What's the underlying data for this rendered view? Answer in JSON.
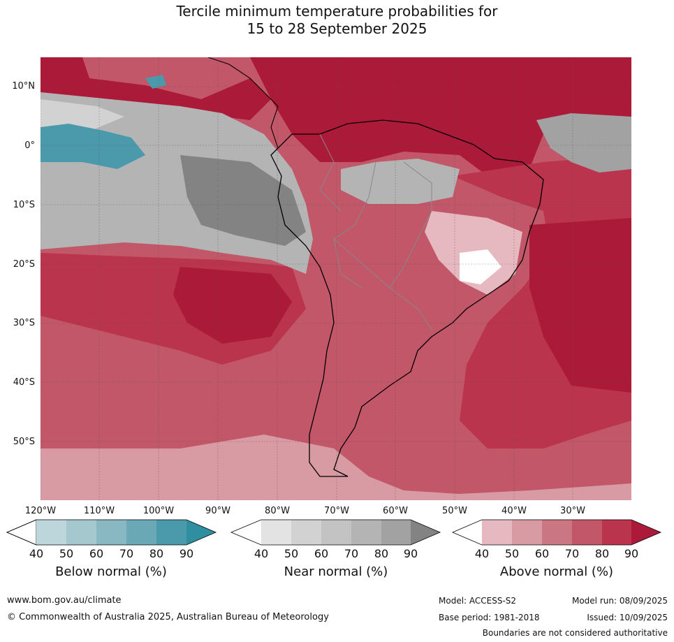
{
  "title": {
    "line1": "Tercile minimum temperature probabilities for",
    "line2": "15 to 28 September 2025"
  },
  "axes": {
    "lat_labels": [
      "10°N",
      "0°",
      "10°S",
      "20°S",
      "30°S",
      "40°S",
      "50°S"
    ],
    "lon_labels": [
      "120°W",
      "110°W",
      "100°W",
      "90°W",
      "80°W",
      "70°W",
      "60°W",
      "50°W",
      "40°W",
      "30°W"
    ]
  },
  "colorbars": [
    {
      "name": "Below normal (%)",
      "ticks": [
        "40",
        "50",
        "60",
        "70",
        "80",
        "90"
      ],
      "colors": [
        "#ffffff",
        "#bcd6dc",
        "#a5c8cf",
        "#8ab8c2",
        "#6aa8b5",
        "#4b9aab",
        "#2f8ea0"
      ]
    },
    {
      "name": "Near normal (%)",
      "ticks": [
        "40",
        "50",
        "60",
        "70",
        "80",
        "90"
      ],
      "colors": [
        "#ffffff",
        "#e3e3e3",
        "#d2d2d2",
        "#c3c3c3",
        "#b4b4b4",
        "#a2a2a2",
        "#838383"
      ]
    },
    {
      "name": "Above normal (%)",
      "ticks": [
        "40",
        "50",
        "60",
        "70",
        "80",
        "90"
      ],
      "colors": [
        "#ffffff",
        "#e6b9c0",
        "#d89aa3",
        "#cb7683",
        "#c25769",
        "#b9344c",
        "#ac1a39"
      ]
    }
  ],
  "footer": {
    "url": "www.bom.gov.au/climate",
    "copyright": "© Commonwealth of Australia 2025, Australian Bureau of Meteorology",
    "model": "Model: ACCESS-S2",
    "base_period": "Base period: 1981-2018",
    "model_run": "Model run: 08/09/2025",
    "issued": "Issued: 10/09/2025",
    "disclaimer": "Boundaries are not considered authoritative"
  }
}
